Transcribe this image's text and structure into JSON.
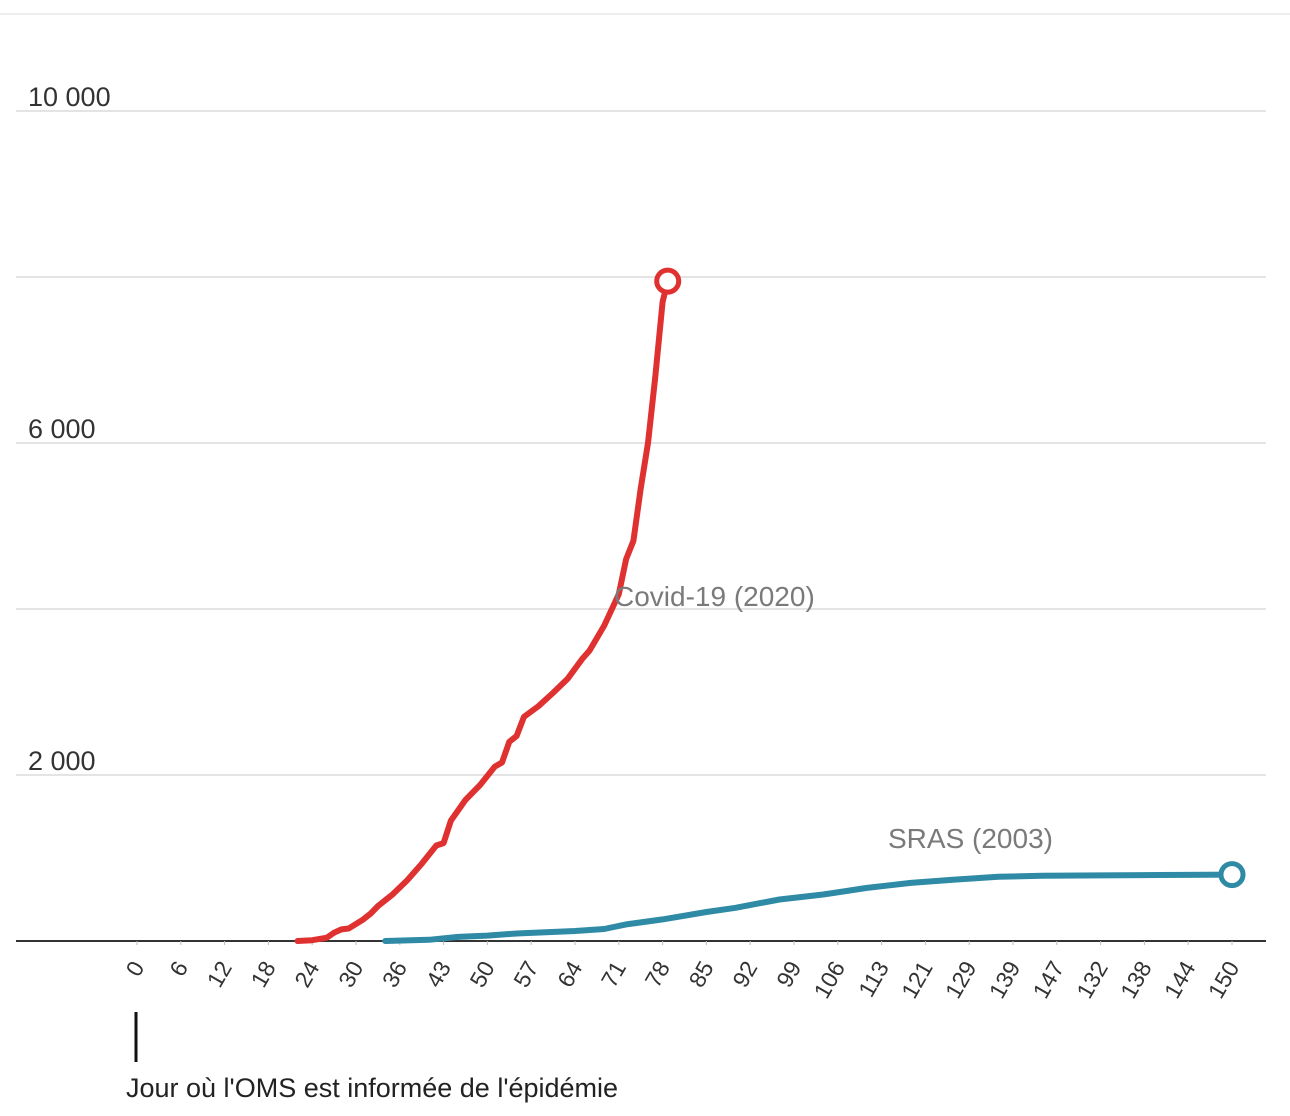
{
  "chart_data": {
    "type": "line",
    "title": "",
    "xlabel": "",
    "ylabel": "",
    "ylim": [
      0,
      10000
    ],
    "y_ticks": [
      {
        "value": 2000,
        "label": "2 000"
      },
      {
        "value": 6000,
        "label": "6 000"
      },
      {
        "value": 10000,
        "label": "10 000"
      }
    ],
    "y_gridlines": [
      2000,
      4000,
      6000,
      8000,
      10000
    ],
    "x_tick_labels": [
      "0",
      "6",
      "12",
      "18",
      "24",
      "30",
      "36",
      "43",
      "50",
      "57",
      "64",
      "71",
      "78",
      "85",
      "92",
      "99",
      "106",
      "113",
      "121",
      "129",
      "139",
      "147",
      "132",
      "138",
      "144",
      "150"
    ],
    "grid": true,
    "legend": "none (inline labels)",
    "annotation": {
      "x_index": 0,
      "text": "Jour où l'OMS est informée de l'épidémie"
    },
    "series": [
      {
        "name": "Covid-19 (2020)",
        "color": "#e03131",
        "marker_end": "open-circle",
        "points": [
          [
            22,
            0
          ],
          [
            24,
            10
          ],
          [
            26,
            40
          ],
          [
            27,
            100
          ],
          [
            28,
            140
          ],
          [
            29,
            150
          ],
          [
            31,
            260
          ],
          [
            32,
            330
          ],
          [
            33,
            420
          ],
          [
            35,
            560
          ],
          [
            37,
            730
          ],
          [
            39,
            930
          ],
          [
            41,
            1150
          ],
          [
            42,
            1180
          ],
          [
            43,
            1450
          ],
          [
            45,
            1700
          ],
          [
            47,
            1880
          ],
          [
            49,
            2100
          ],
          [
            50,
            2150
          ],
          [
            51,
            2400
          ],
          [
            52,
            2470
          ],
          [
            53,
            2700
          ],
          [
            55,
            2830
          ],
          [
            57,
            2990
          ],
          [
            59,
            3160
          ],
          [
            61,
            3400
          ],
          [
            62,
            3500
          ],
          [
            64,
            3800
          ],
          [
            66,
            4180
          ],
          [
            67,
            4600
          ],
          [
            68,
            4820
          ],
          [
            69,
            5450
          ],
          [
            70,
            6000
          ],
          [
            71,
            6800
          ],
          [
            72,
            7700
          ],
          [
            72.7,
            7950
          ]
        ]
      },
      {
        "name": "SRAS (2003)",
        "color": "#2e8aa5",
        "marker_end": "open-circle",
        "points": [
          [
            34,
            0
          ],
          [
            40,
            15
          ],
          [
            44,
            50
          ],
          [
            48,
            65
          ],
          [
            52,
            90
          ],
          [
            60,
            120
          ],
          [
            64,
            145
          ],
          [
            67,
            200
          ],
          [
            72,
            260
          ],
          [
            78,
            350
          ],
          [
            82,
            400
          ],
          [
            88,
            500
          ],
          [
            94,
            560
          ],
          [
            100,
            640
          ],
          [
            106,
            700
          ],
          [
            112,
            740
          ],
          [
            118,
            775
          ],
          [
            124,
            785
          ],
          [
            132,
            790
          ],
          [
            140,
            795
          ],
          [
            150,
            800
          ]
        ]
      }
    ]
  }
}
